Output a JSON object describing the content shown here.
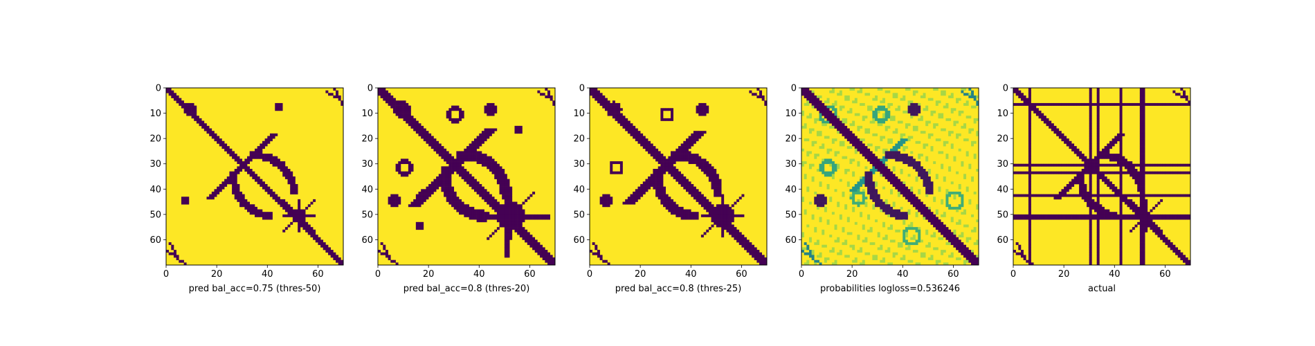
{
  "colors": {
    "low": "#440154",
    "mid_low": "#21918c",
    "mid_high": "#5ec962",
    "high": "#fde725",
    "axis": "#000000",
    "background": "#ffffff"
  },
  "chart_data": [
    {
      "type": "heatmap",
      "title": "",
      "xlabel": "pred bal_acc=0.75 (thres-50)",
      "ylabel": "",
      "xlim": [
        0,
        70
      ],
      "ylim": [
        70,
        0
      ],
      "size": 70,
      "xticks": [
        0,
        20,
        40,
        60
      ],
      "yticks": [
        0,
        10,
        20,
        30,
        40,
        50,
        60
      ],
      "colormap": "viridis",
      "values": [
        0,
        1
      ],
      "features": [
        {
          "kind": "diag",
          "from": 0,
          "to": 70,
          "width": 1.6,
          "value": 0
        },
        {
          "kind": "anti",
          "from": 17,
          "to": 42,
          "width": 1.6,
          "value": 0
        },
        {
          "kind": "arc",
          "cx": 42,
          "cy": 34,
          "r": 16,
          "a0": 180,
          "a1": 265,
          "width": 1.2,
          "value": 0
        },
        {
          "kind": "blob",
          "cx": 9,
          "cy": 8,
          "r": 2.5,
          "value": 0
        },
        {
          "kind": "blob",
          "cx": 44,
          "cy": 7,
          "r": 1.8,
          "value": 0
        },
        {
          "kind": "blob",
          "cx": 7,
          "cy": 44,
          "r": 1.8,
          "value": 0
        },
        {
          "kind": "blob",
          "cx": 52,
          "cy": 50,
          "r": 2.5,
          "value": 0
        },
        {
          "kind": "spray",
          "cx": 52,
          "cy": 50,
          "len": 7,
          "value": 0
        },
        {
          "kind": "corner",
          "value": 0
        }
      ]
    },
    {
      "type": "heatmap",
      "title": "",
      "xlabel": "pred bal_acc=0.8 (thres-20)",
      "ylabel": "",
      "xlim": [
        0,
        70
      ],
      "ylim": [
        70,
        0
      ],
      "size": 70,
      "xticks": [
        0,
        20,
        40,
        60
      ],
      "yticks": [
        0,
        10,
        20,
        30,
        40,
        50,
        60
      ],
      "colormap": "viridis",
      "values": [
        0,
        1
      ],
      "features": [
        {
          "kind": "diag",
          "from": 0,
          "to": 70,
          "width": 2.2,
          "value": 0
        },
        {
          "kind": "anti",
          "from": 14,
          "to": 44,
          "width": 2.2,
          "value": 0
        },
        {
          "kind": "arc",
          "cx": 42,
          "cy": 34,
          "r": 16,
          "a0": 175,
          "a1": 268,
          "width": 1.8,
          "value": 0
        },
        {
          "kind": "blob",
          "cx": 9,
          "cy": 8,
          "r": 3.5,
          "value": 0
        },
        {
          "kind": "ring",
          "cx": 30,
          "cy": 10,
          "r": 2.5,
          "value": 0
        },
        {
          "kind": "blob",
          "cx": 44,
          "cy": 8,
          "r": 2.5,
          "value": 0
        },
        {
          "kind": "ring",
          "cx": 10,
          "cy": 31,
          "r": 2.5,
          "value": 0
        },
        {
          "kind": "blob",
          "cx": 6,
          "cy": 44,
          "r": 2.5,
          "value": 0
        },
        {
          "kind": "blob",
          "cx": 17,
          "cy": 42,
          "r": 2,
          "value": 0
        },
        {
          "kind": "blob",
          "cx": 52,
          "cy": 50,
          "r": 5.5,
          "value": 0
        },
        {
          "kind": "hline",
          "y": 50,
          "from": 40,
          "to": 68,
          "width": 1.4,
          "value": 0
        },
        {
          "kind": "vline",
          "x": 50,
          "from": 44,
          "to": 67,
          "width": 1.4,
          "value": 0
        },
        {
          "kind": "spray",
          "cx": 52,
          "cy": 50,
          "len": 10,
          "value": 0
        },
        {
          "kind": "blob",
          "cx": 16,
          "cy": 54,
          "r": 1.5,
          "value": 0
        },
        {
          "kind": "blob",
          "cx": 55,
          "cy": 16,
          "r": 1.5,
          "value": 0
        },
        {
          "kind": "corner",
          "value": 0
        }
      ]
    },
    {
      "type": "heatmap",
      "title": "",
      "xlabel": "pred bal_acc=0.8 (thres-25)",
      "ylabel": "",
      "xlim": [
        0,
        70
      ],
      "ylim": [
        70,
        0
      ],
      "size": 70,
      "xticks": [
        0,
        20,
        40,
        60
      ],
      "yticks": [
        0,
        10,
        20,
        30,
        40,
        50,
        60
      ],
      "colormap": "viridis",
      "values": [
        0,
        1
      ],
      "features": [
        {
          "kind": "diag",
          "from": 0,
          "to": 70,
          "width": 2,
          "value": 0
        },
        {
          "kind": "anti",
          "from": 15,
          "to": 43,
          "width": 2,
          "value": 0
        },
        {
          "kind": "arc",
          "cx": 42,
          "cy": 34,
          "r": 16,
          "a0": 178,
          "a1": 266,
          "width": 1.6,
          "value": 0
        },
        {
          "kind": "blob",
          "cx": 9,
          "cy": 8,
          "r": 3,
          "value": 0
        },
        {
          "kind": "ring",
          "cx": 30,
          "cy": 10,
          "r": 2.2,
          "value": 0
        },
        {
          "kind": "blob",
          "cx": 44,
          "cy": 8,
          "r": 2.3,
          "value": 0
        },
        {
          "kind": "ring",
          "cx": 10,
          "cy": 31,
          "r": 2.2,
          "value": 0
        },
        {
          "kind": "blob",
          "cx": 6,
          "cy": 44,
          "r": 2.3,
          "value": 0
        },
        {
          "kind": "blob",
          "cx": 52,
          "cy": 50,
          "r": 4.5,
          "value": 0
        },
        {
          "kind": "spray",
          "cx": 52,
          "cy": 50,
          "len": 9,
          "value": 0
        },
        {
          "kind": "corner",
          "value": 0
        }
      ]
    },
    {
      "type": "heatmap",
      "title": "",
      "xlabel": "probabilities logloss=0.536246",
      "ylabel": "",
      "xlim": [
        0,
        70
      ],
      "ylim": [
        70,
        0
      ],
      "size": 70,
      "xticks": [
        0,
        20,
        40,
        60
      ],
      "yticks": [
        0,
        10,
        20,
        30,
        40,
        50,
        60
      ],
      "colormap": "viridis",
      "values": [
        0,
        1
      ],
      "features": [
        {
          "kind": "diag",
          "from": 0,
          "to": 70,
          "width": 2.4,
          "value": 0
        },
        {
          "kind": "anti",
          "from": 20,
          "to": 40,
          "width": 1.6,
          "value": 0.35
        },
        {
          "kind": "arc",
          "cx": 42,
          "cy": 34,
          "r": 16,
          "a0": 180,
          "a1": 265,
          "width": 1.4,
          "value": 0.05
        },
        {
          "kind": "ring",
          "cx": 10,
          "cy": 10,
          "r": 3,
          "value": 0.45
        },
        {
          "kind": "ring",
          "cx": 31,
          "cy": 10,
          "r": 2.6,
          "value": 0.45
        },
        {
          "kind": "blob",
          "cx": 44,
          "cy": 8,
          "r": 2.5,
          "value": 0.05
        },
        {
          "kind": "ring",
          "cx": 10,
          "cy": 31,
          "r": 2.6,
          "value": 0.45
        },
        {
          "kind": "blob",
          "cx": 7,
          "cy": 44,
          "r": 2.3,
          "value": 0.05
        },
        {
          "kind": "ring",
          "cx": 22,
          "cy": 43,
          "r": 2.3,
          "value": 0.5
        },
        {
          "kind": "ring",
          "cx": 60,
          "cy": 44,
          "r": 3,
          "value": 0.5
        },
        {
          "kind": "ring",
          "cx": 43,
          "cy": 58,
          "r": 3,
          "value": 0.5
        },
        {
          "kind": "haze",
          "value": 0.82
        },
        {
          "kind": "corner",
          "value": 0.3
        }
      ]
    },
    {
      "type": "heatmap",
      "title": "",
      "xlabel": "actual",
      "ylabel": "",
      "xlim": [
        0,
        70
      ],
      "ylim": [
        70,
        0
      ],
      "size": 70,
      "xticks": [
        0,
        20,
        40,
        60
      ],
      "yticks": [
        0,
        10,
        20,
        30,
        40,
        50,
        60
      ],
      "colormap": "viridis",
      "values": [
        0,
        1
      ],
      "features": [
        {
          "kind": "diag",
          "from": 0,
          "to": 70,
          "width": 1.8,
          "value": 0
        },
        {
          "kind": "anti",
          "from": 17,
          "to": 42,
          "width": 1.8,
          "value": 0
        },
        {
          "kind": "arc",
          "cx": 42,
          "cy": 34,
          "r": 16,
          "a0": 180,
          "a1": 262,
          "width": 1.2,
          "value": 0
        },
        {
          "kind": "hline",
          "y": 6,
          "from": 0,
          "to": 70,
          "width": 0.9,
          "value": 0
        },
        {
          "kind": "hline",
          "y": 30,
          "from": 0,
          "to": 70,
          "width": 0.9,
          "value": 0
        },
        {
          "kind": "hline",
          "y": 33,
          "from": 0,
          "to": 70,
          "width": 0.9,
          "value": 0
        },
        {
          "kind": "hline",
          "y": 42,
          "from": 0,
          "to": 70,
          "width": 0.9,
          "value": 0
        },
        {
          "kind": "hline",
          "y": 50,
          "from": 0,
          "to": 70,
          "width": 1.6,
          "value": 0
        },
        {
          "kind": "vline",
          "x": 6,
          "from": 0,
          "to": 70,
          "width": 0.9,
          "value": 0
        },
        {
          "kind": "vline",
          "x": 30,
          "from": 0,
          "to": 70,
          "width": 0.9,
          "value": 0
        },
        {
          "kind": "vline",
          "x": 33,
          "from": 0,
          "to": 70,
          "width": 0.9,
          "value": 0
        },
        {
          "kind": "vline",
          "x": 42,
          "from": 0,
          "to": 70,
          "width": 0.9,
          "value": 0
        },
        {
          "kind": "vline",
          "x": 50,
          "from": 0,
          "to": 70,
          "width": 1.6,
          "value": 0
        },
        {
          "kind": "spray",
          "cx": 52,
          "cy": 50,
          "len": 7,
          "value": 0
        },
        {
          "kind": "corner",
          "value": 0
        }
      ]
    }
  ]
}
